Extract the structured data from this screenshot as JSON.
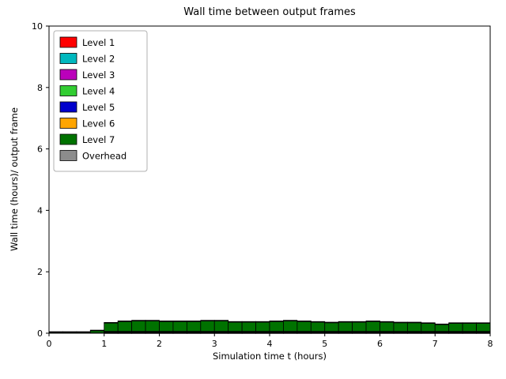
{
  "figure": {
    "background": "#ffffff"
  },
  "chart_data": {
    "type": "bar",
    "stacked": true,
    "title": "Wall time between output frames",
    "xlabel": "Simulation time t (hours)",
    "ylabel": "Wall time (hours)/ output frame",
    "xlim": [
      0,
      8
    ],
    "ylim": [
      0,
      10
    ],
    "xticks": [
      "0",
      "1",
      "2",
      "3",
      "4",
      "5",
      "6",
      "7",
      "8"
    ],
    "yticks": [
      "0",
      "2",
      "4",
      "6",
      "8",
      "10"
    ],
    "legend_position": "upper left",
    "grid": false,
    "bar_width": 0.25,
    "bar_edge_color": "#000000",
    "bar_left_edges": [
      0,
      0.25,
      0.5,
      0.75,
      1,
      1.25,
      1.5,
      1.75,
      2,
      2.25,
      2.5,
      2.75,
      3,
      3.25,
      3.5,
      3.75,
      4,
      4.25,
      4.5,
      4.75,
      5,
      5.25,
      5.5,
      5.75,
      6,
      6.25,
      6.5,
      6.75,
      7,
      7.25,
      7.5,
      7.75
    ],
    "series": [
      {
        "name": "Level 1",
        "color": "#ff0000",
        "values": [
          0,
          0,
          0,
          0,
          0.005,
          0.005,
          0.005,
          0.005,
          0.005,
          0.005,
          0.005,
          0.005,
          0.005,
          0.005,
          0.005,
          0.005,
          0.005,
          0.005,
          0.005,
          0.005,
          0.005,
          0.005,
          0.005,
          0.005,
          0.005,
          0.005,
          0.005,
          0.005,
          0.005,
          0.005,
          0.005,
          0.005
        ]
      },
      {
        "name": "Level 2",
        "color": "#00b8be",
        "values": [
          0,
          0,
          0,
          0,
          0.005,
          0.005,
          0.005,
          0.005,
          0.005,
          0.005,
          0.005,
          0.005,
          0.005,
          0.005,
          0.005,
          0.005,
          0.005,
          0.005,
          0.005,
          0.005,
          0.005,
          0.005,
          0.005,
          0.005,
          0.005,
          0.005,
          0.005,
          0.005,
          0.005,
          0.005,
          0.005,
          0.005
        ]
      },
      {
        "name": "Level 3",
        "color": "#bb00bb",
        "values": [
          0,
          0,
          0,
          0,
          0.005,
          0.005,
          0.005,
          0.005,
          0.005,
          0.005,
          0.005,
          0.005,
          0.005,
          0.005,
          0.005,
          0.005,
          0.005,
          0.005,
          0.005,
          0.005,
          0.005,
          0.005,
          0.005,
          0.005,
          0.005,
          0.005,
          0.005,
          0.005,
          0.005,
          0.005,
          0.005,
          0.005
        ]
      },
      {
        "name": "Level 4",
        "color": "#32cd32",
        "values": [
          0,
          0,
          0,
          0,
          0.01,
          0.01,
          0.01,
          0.01,
          0.01,
          0.01,
          0.01,
          0.01,
          0.01,
          0.01,
          0.01,
          0.01,
          0.01,
          0.01,
          0.01,
          0.01,
          0.01,
          0.01,
          0.01,
          0.01,
          0.01,
          0.01,
          0.01,
          0.01,
          0.01,
          0.01,
          0.01,
          0.01
        ]
      },
      {
        "name": "Level 5",
        "color": "#0000cc",
        "values": [
          0,
          0,
          0,
          0,
          0.015,
          0.015,
          0.015,
          0.015,
          0.015,
          0.015,
          0.015,
          0.015,
          0.015,
          0.015,
          0.015,
          0.015,
          0.015,
          0.015,
          0.015,
          0.015,
          0.015,
          0.015,
          0.015,
          0.015,
          0.015,
          0.015,
          0.015,
          0.015,
          0.015,
          0.015,
          0.015,
          0.015
        ]
      },
      {
        "name": "Level 6",
        "color": "#ffa500",
        "values": [
          0,
          0,
          0,
          0.01,
          0.02,
          0.02,
          0.02,
          0.02,
          0.02,
          0.02,
          0.02,
          0.02,
          0.02,
          0.02,
          0.02,
          0.02,
          0.02,
          0.02,
          0.02,
          0.02,
          0.02,
          0.02,
          0.02,
          0.02,
          0.02,
          0.02,
          0.02,
          0.02,
          0.02,
          0.02,
          0.02,
          0.02
        ]
      },
      {
        "name": "Level 7",
        "color": "#007200",
        "values": [
          0.03,
          0.03,
          0.03,
          0.07,
          0.27,
          0.32,
          0.34,
          0.34,
          0.32,
          0.32,
          0.32,
          0.34,
          0.34,
          0.3,
          0.3,
          0.3,
          0.32,
          0.34,
          0.32,
          0.3,
          0.28,
          0.3,
          0.3,
          0.32,
          0.3,
          0.28,
          0.28,
          0.26,
          0.22,
          0.26,
          0.26,
          0.26
        ]
      },
      {
        "name": "Overhead",
        "color": "#8c8c8c",
        "values": [
          0.02,
          0.02,
          0.02,
          0.02,
          0.02,
          0.02,
          0.02,
          0.02,
          0.02,
          0.02,
          0.02,
          0.02,
          0.02,
          0.02,
          0.02,
          0.02,
          0.02,
          0.02,
          0.02,
          0.02,
          0.02,
          0.02,
          0.02,
          0.02,
          0.02,
          0.02,
          0.02,
          0.02,
          0.02,
          0.02,
          0.02,
          0.02
        ]
      }
    ]
  }
}
